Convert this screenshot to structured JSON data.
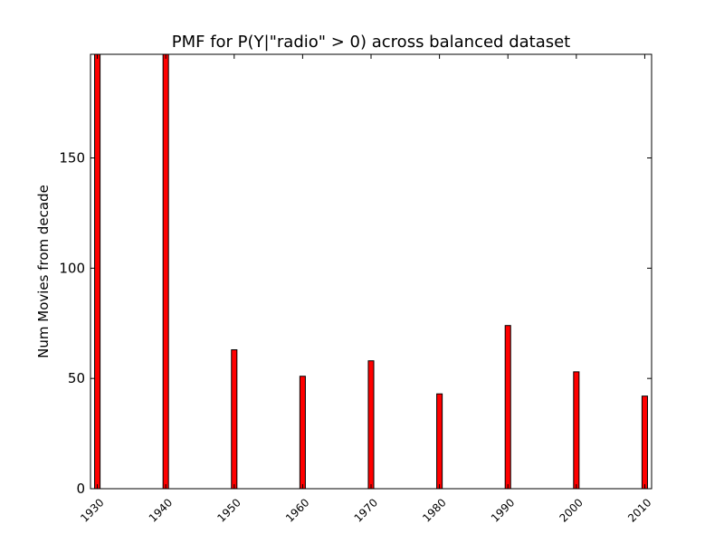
{
  "chart_data": {
    "type": "bar",
    "title": "PMF for P(Y|\"radio\" > 0) across balanced dataset",
    "xlabel": "",
    "ylabel": "Num Movies from decade",
    "categories": [
      "1930",
      "1940",
      "1950",
      "1960",
      "1970",
      "1980",
      "1990",
      "2000",
      "2010"
    ],
    "values": [
      197,
      200,
      63,
      51,
      58,
      43,
      74,
      53,
      42
    ],
    "xlim": [
      1929,
      2011
    ],
    "ylim": [
      0,
      197
    ],
    "yticks": [
      "0",
      "50",
      "100",
      "150"
    ],
    "xticks": [
      "1930",
      "1940",
      "1950",
      "1960",
      "1970",
      "1980",
      "1990",
      "2000",
      "2010"
    ],
    "bar_color": "#ff0000",
    "grid": false
  }
}
